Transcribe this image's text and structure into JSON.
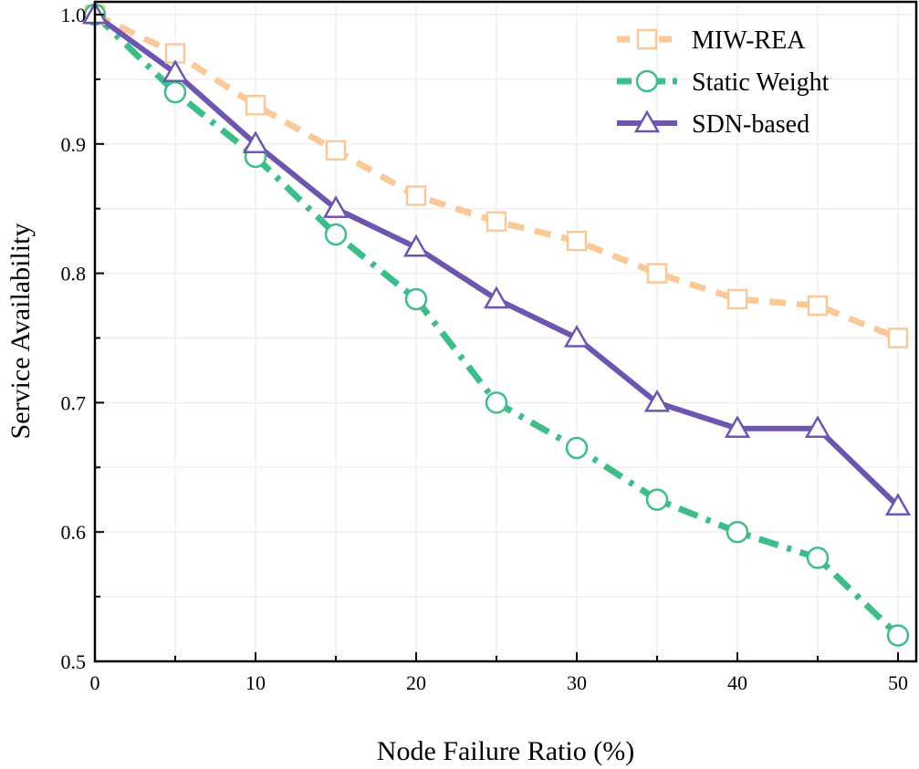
{
  "chart_data": {
    "type": "line",
    "title": "",
    "xlabel": "Node Failure Ratio (%)",
    "ylabel": "Service Availability",
    "xlim": [
      0,
      50
    ],
    "ylim": [
      0.5,
      1.0
    ],
    "x": [
      0,
      5,
      10,
      15,
      20,
      25,
      30,
      35,
      40,
      45,
      50
    ],
    "x_ticks": [
      "0",
      "10",
      "20",
      "30",
      "40",
      "50"
    ],
    "y_ticks": [
      "0.5",
      "0.6",
      "0.7",
      "0.8",
      "0.9",
      "1.0"
    ],
    "grid": true,
    "legend_position": "top-right",
    "series": [
      {
        "name": "MIW-REA",
        "color": "#F9C99A",
        "line_style": "dashed",
        "marker": "square",
        "values": [
          1.0,
          0.97,
          0.93,
          0.895,
          0.86,
          0.84,
          0.825,
          0.8,
          0.78,
          0.775,
          0.75
        ]
      },
      {
        "name": "Static Weight",
        "color": "#3DBE88",
        "line_style": "dash-dot",
        "marker": "circle",
        "values": [
          1.0,
          0.94,
          0.89,
          0.83,
          0.78,
          0.7,
          0.665,
          0.625,
          0.6,
          0.58,
          0.52
        ]
      },
      {
        "name": "SDN-based",
        "color": "#6E56B0",
        "line_style": "solid",
        "marker": "triangle",
        "values": [
          1.0,
          0.955,
          0.9,
          0.85,
          0.82,
          0.78,
          0.75,
          0.7,
          0.68,
          0.68,
          0.62
        ]
      }
    ]
  }
}
